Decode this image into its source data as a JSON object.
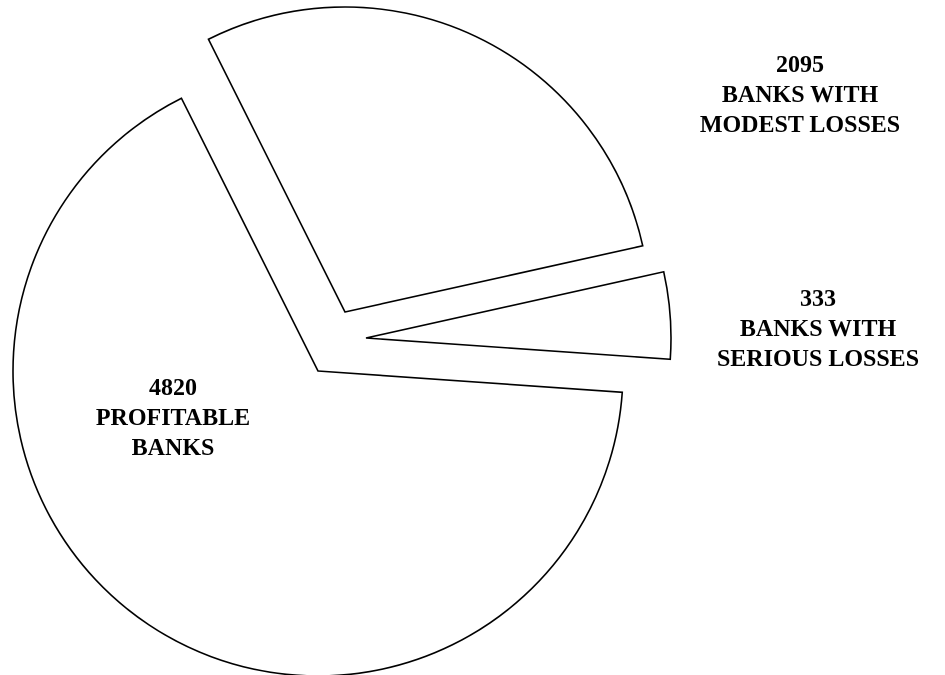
{
  "chart_data": {
    "type": "pie",
    "slices": [
      {
        "value": 4820,
        "label": [
          "PROFITABLE",
          "BANKS"
        ]
      },
      {
        "value": 2095,
        "label": [
          "BANKS WITH",
          "MODEST LOSSES"
        ]
      },
      {
        "value": 333,
        "label": [
          "BANKS WITH",
          "SERIOUS LOSSES"
        ]
      }
    ],
    "exploded": true,
    "fill_color": "#ffffff",
    "stroke_color": "#000000"
  }
}
